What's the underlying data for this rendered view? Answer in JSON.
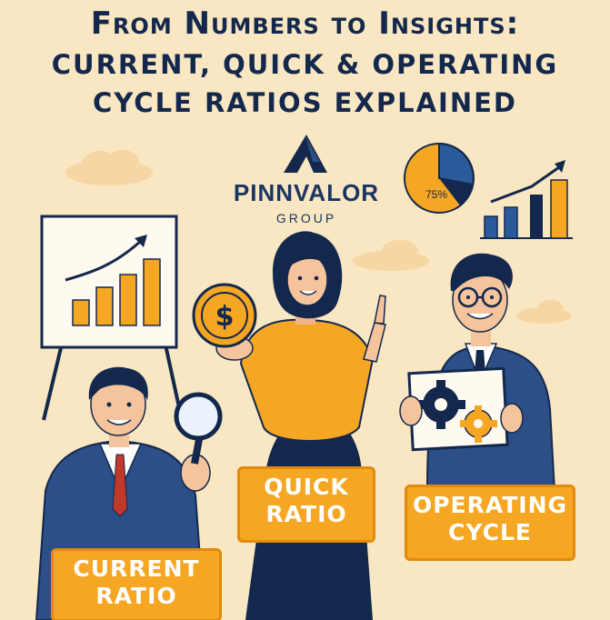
{
  "title": {
    "line1": "From Numbers to Insights:",
    "line2": "CURRENT, QUICK & OPERATING",
    "line3": "CYCLE RATIOS EXPLAINED"
  },
  "brand": {
    "name": "PINNVALOR",
    "sub": "GROUP"
  },
  "pie_label": "75%",
  "labels": {
    "current": [
      "CURRENT",
      "RATIO"
    ],
    "quick": [
      "QUICK",
      "RATIO"
    ],
    "operating": [
      "OPERATING",
      "CYCLE"
    ]
  },
  "colors": {
    "background": "#f9e6c2",
    "navy": "#13284c",
    "orange": "#f5a623"
  }
}
